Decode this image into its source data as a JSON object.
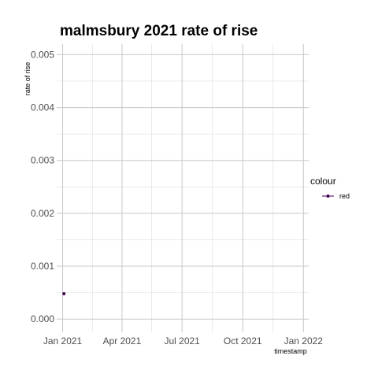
{
  "chart_data": {
    "type": "scatter",
    "title": "malmsbury 2021 rate of rise",
    "xlabel": "timestamp",
    "ylabel": "rate of rise",
    "x_type": "date",
    "xlim": [
      "2020-12-23",
      "2022-01-09"
    ],
    "ylim": [
      -0.00025,
      0.0052
    ],
    "x_ticks": [
      {
        "value": "2021-01-01",
        "label": "Jan 2021"
      },
      {
        "value": "2021-04-01",
        "label": "Apr 2021"
      },
      {
        "value": "2021-07-01",
        "label": "Jul 2021"
      },
      {
        "value": "2021-10-01",
        "label": "Oct 2021"
      },
      {
        "value": "2022-01-01",
        "label": "Jan 2022"
      }
    ],
    "x_minor_ticks": [
      "2021-02-15",
      "2021-05-16",
      "2021-08-16",
      "2021-11-16"
    ],
    "y_ticks": [
      {
        "value": 0.0,
        "label": "0.000"
      },
      {
        "value": 0.001,
        "label": "0.001"
      },
      {
        "value": 0.002,
        "label": "0.002"
      },
      {
        "value": 0.003,
        "label": "0.003"
      },
      {
        "value": 0.004,
        "label": "0.004"
      },
      {
        "value": 0.005,
        "label": "0.005"
      }
    ],
    "y_minor_ticks": [
      0.0005,
      0.0015,
      0.0025,
      0.0035,
      0.0045
    ],
    "grid": true,
    "legend": {
      "title": "colour",
      "placement": "right",
      "entries": [
        {
          "label": "red",
          "color": "#440154"
        }
      ]
    },
    "series": [
      {
        "name": "red",
        "color": "#440154",
        "points": [
          {
            "x": "2021-01-03",
            "y": 0.00048
          }
        ]
      }
    ]
  }
}
